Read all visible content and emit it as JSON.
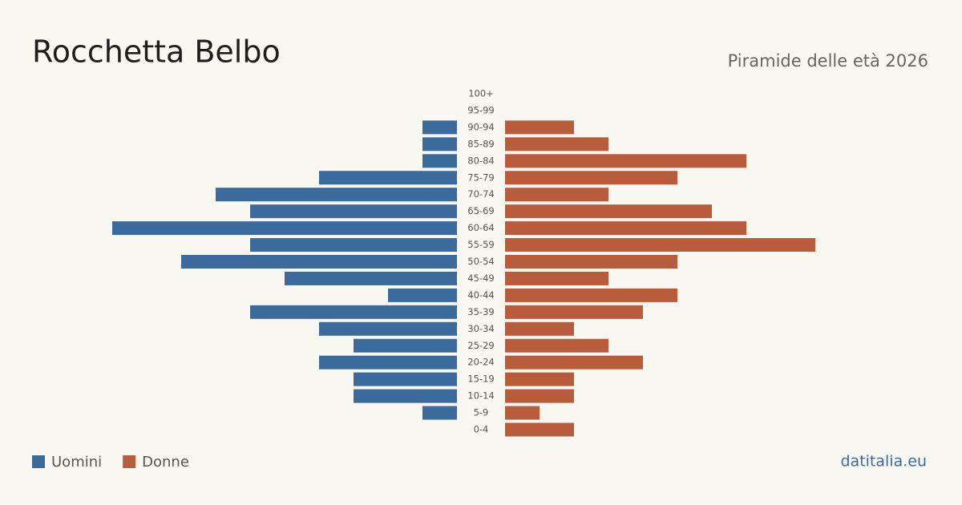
{
  "chart_data": {
    "type": "pyramid",
    "title": "Rocchetta Belbo",
    "subtitle": "Piramide delle età 2026",
    "source": "datitalia.eu",
    "categories": [
      "100+",
      "95-99",
      "90-94",
      "85-89",
      "80-84",
      "75-79",
      "70-74",
      "65-69",
      "60-64",
      "55-59",
      "50-54",
      "45-49",
      "40-44",
      "35-39",
      "30-34",
      "25-29",
      "20-24",
      "15-19",
      "10-14",
      "5-9",
      "0-4"
    ],
    "series": [
      {
        "name": "Uomini",
        "color": "#3b6a9c",
        "values": [
          0,
          0,
          1,
          1,
          1,
          4,
          7,
          6,
          10,
          6,
          8,
          5,
          2,
          6,
          4,
          3,
          4,
          3,
          3,
          1,
          0
        ]
      },
      {
        "name": "Donne",
        "color": "#b95c3c",
        "values": [
          0,
          0,
          2,
          3,
          7,
          5,
          3,
          6,
          7,
          9,
          5,
          3,
          5,
          4,
          2,
          3,
          4,
          2,
          2,
          1,
          2
        ]
      }
    ]
  }
}
